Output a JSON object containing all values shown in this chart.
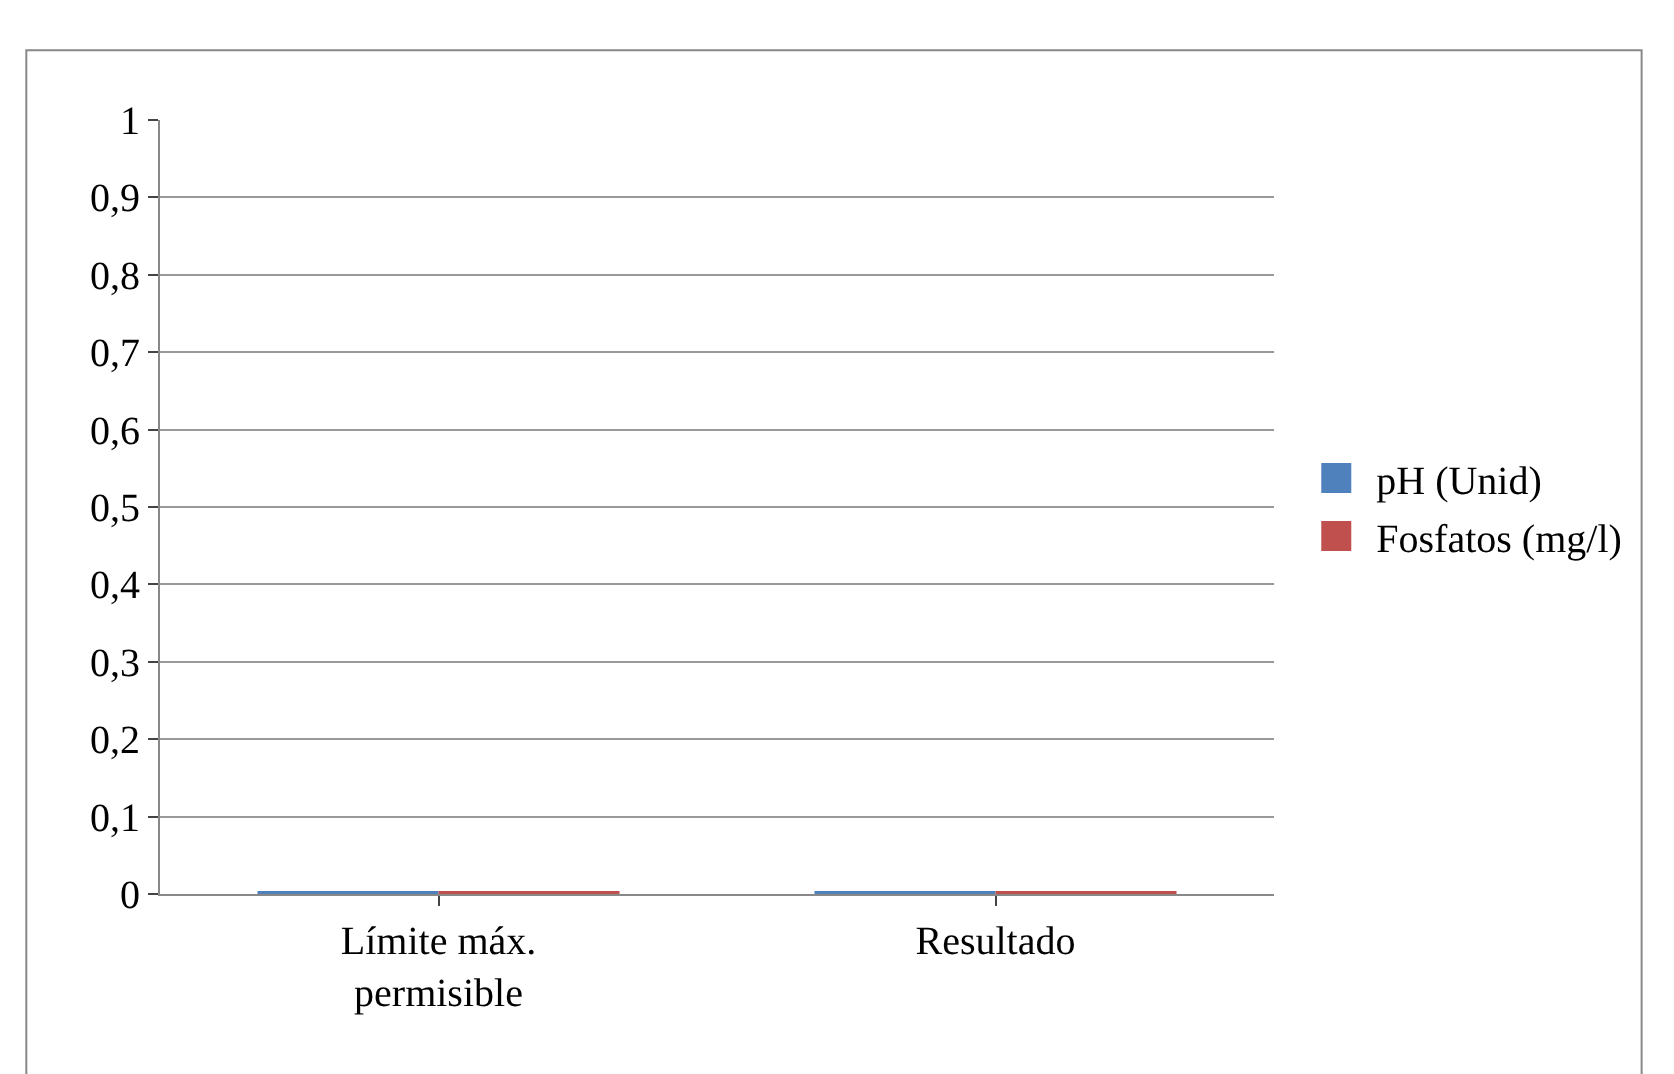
{
  "chart_data": {
    "type": "bar",
    "categories": [
      "Límite máx. permisible",
      "Resultado"
    ],
    "series": [
      {
        "name": "pH (Unid)",
        "color": "#4f81bd",
        "values": [
          0,
          0
        ]
      },
      {
        "name": "Fosfatos (mg/l)",
        "color": "#c0504d",
        "values": [
          0,
          0
        ]
      }
    ],
    "ylim": [
      0,
      1
    ],
    "yticks": [
      0,
      {
        "value": 0.1,
        "label": "0,1"
      },
      {
        "value": 0.2,
        "label": "0,2"
      },
      {
        "value": 0.3,
        "label": "0,3"
      },
      {
        "value": 0.4,
        "label": "0,4"
      },
      {
        "value": 0.5,
        "label": "0,5"
      },
      {
        "value": 0.6,
        "label": "0,6"
      },
      {
        "value": 0.7,
        "label": "0,7"
      },
      {
        "value": 0.8,
        "label": "0,8"
      },
      {
        "value": 0.9,
        "label": "0,9"
      },
      1
    ],
    "grid": "y",
    "legend": "right"
  }
}
